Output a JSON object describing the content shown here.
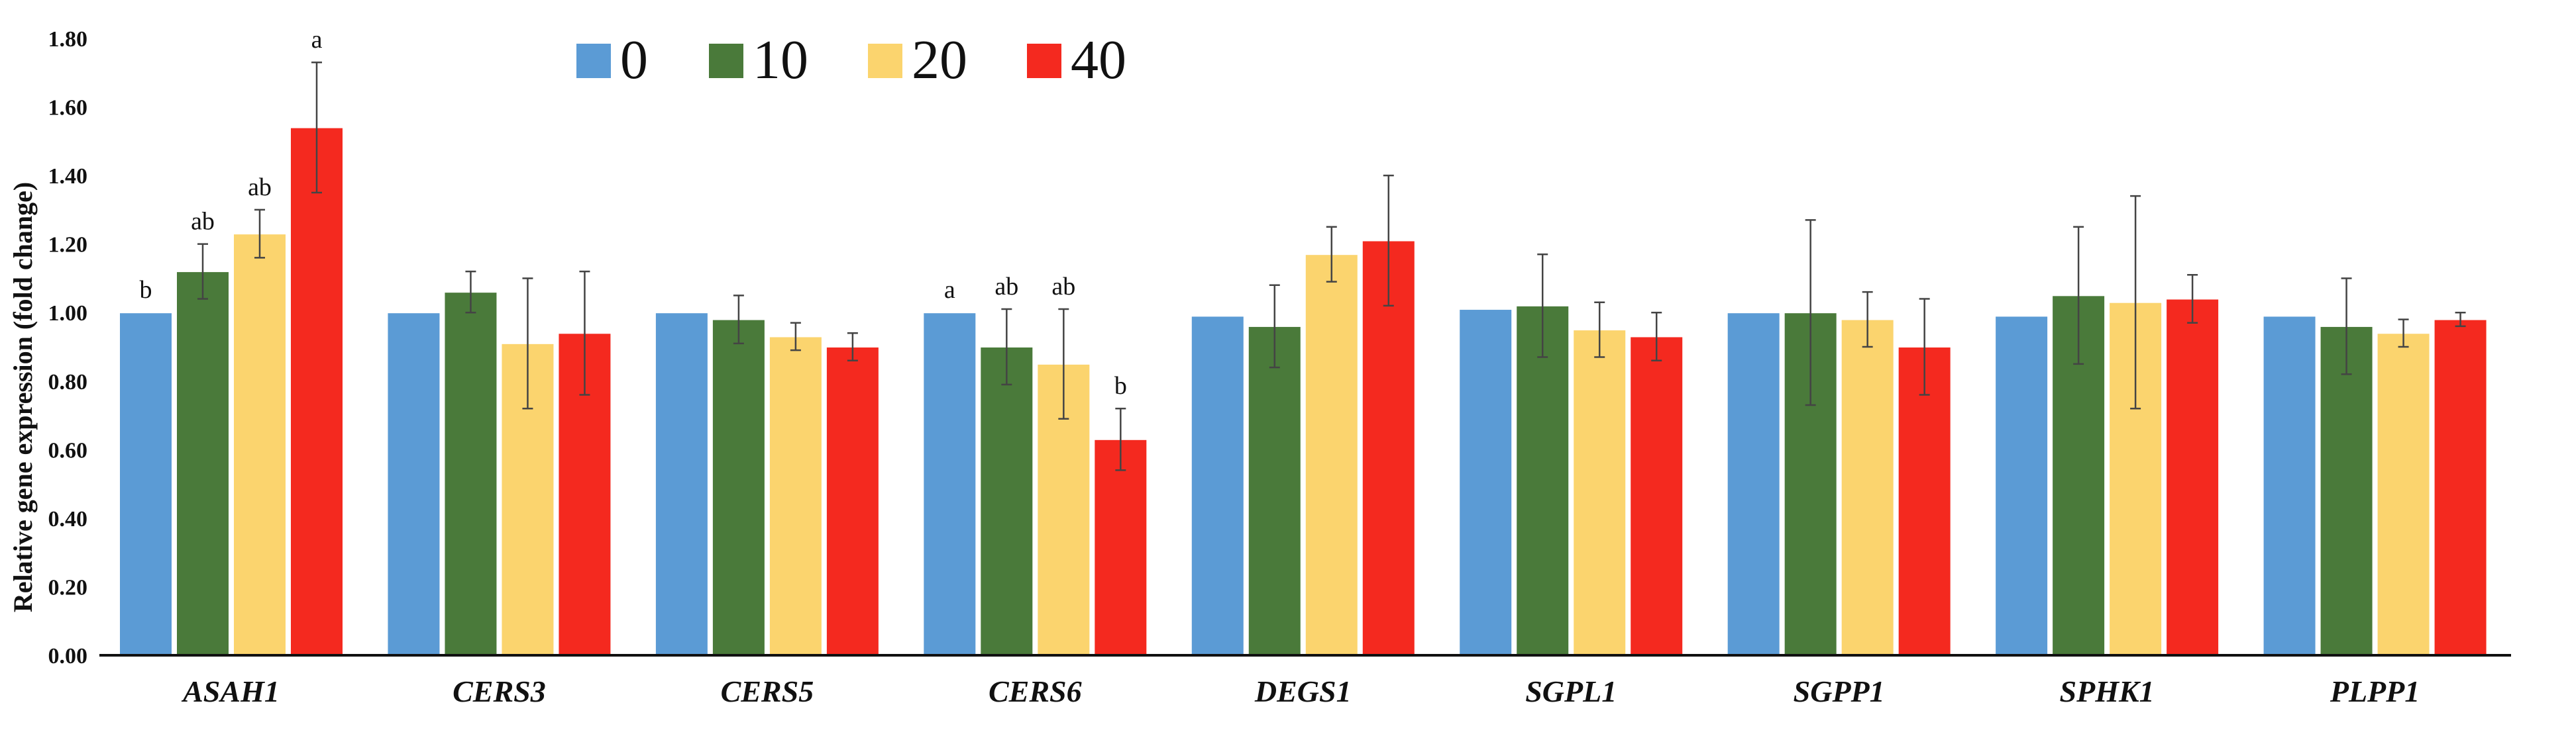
{
  "chart_data": {
    "type": "bar",
    "title": "",
    "xlabel": "",
    "ylabel": "Relative gene expression (fold change)",
    "ylim": [
      0,
      1.8
    ],
    "yticks": [
      "0.00",
      "0.20",
      "0.40",
      "0.60",
      "0.80",
      "1.00",
      "1.20",
      "1.40",
      "1.60",
      "1.80"
    ],
    "grid": false,
    "legend_position": "top-center",
    "categories": [
      "ASAH1",
      "CERS3",
      "CERS5",
      "CERS6",
      "DEGS1",
      "SGPL1",
      "SGPP1",
      "SPHK1",
      "PLPP1"
    ],
    "series": [
      {
        "name": "0",
        "color": "#5b9bd5",
        "values": [
          1.0,
          1.0,
          1.0,
          1.0,
          0.99,
          1.01,
          1.0,
          0.99,
          0.99
        ],
        "errors": [
          0,
          0,
          0,
          0,
          0,
          0,
          0,
          0,
          0
        ],
        "labels": [
          "b",
          "",
          "",
          "a",
          "",
          "",
          "",
          "",
          ""
        ]
      },
      {
        "name": "10",
        "color": "#4a7a3a",
        "values": [
          1.12,
          1.06,
          0.98,
          0.9,
          0.96,
          1.02,
          1.0,
          1.05,
          0.96
        ],
        "errors": [
          0.08,
          0.06,
          0.07,
          0.11,
          0.12,
          0.15,
          0.27,
          0.2,
          0.14
        ],
        "labels": [
          "ab",
          "",
          "",
          "ab",
          "",
          "",
          "",
          "",
          ""
        ]
      },
      {
        "name": "20",
        "color": "#fbd46e",
        "values": [
          1.23,
          0.91,
          0.93,
          0.85,
          1.17,
          0.95,
          0.98,
          1.03,
          0.94
        ],
        "errors": [
          0.07,
          0.19,
          0.04,
          0.16,
          0.08,
          0.08,
          0.08,
          0.31,
          0.04
        ],
        "labels": [
          "ab",
          "",
          "",
          "ab",
          "",
          "",
          "",
          "",
          ""
        ]
      },
      {
        "name": "40",
        "color": "#f4291f",
        "values": [
          1.54,
          0.94,
          0.9,
          0.63,
          1.21,
          0.93,
          0.9,
          1.04,
          0.98
        ],
        "errors": [
          0.19,
          0.18,
          0.04,
          0.09,
          0.19,
          0.07,
          0.14,
          0.07,
          0.02
        ],
        "labels": [
          "a",
          "",
          "",
          "b",
          "",
          "",
          "",
          "",
          ""
        ]
      }
    ]
  }
}
